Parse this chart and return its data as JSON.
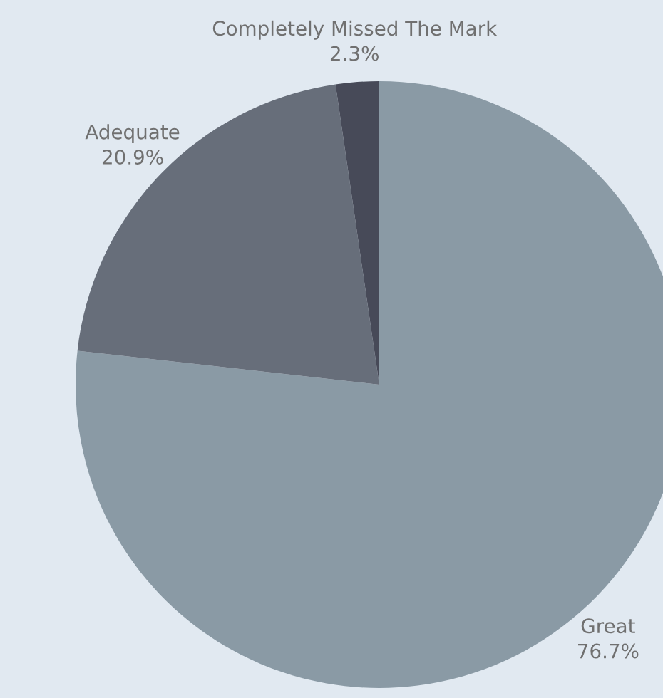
{
  "chart_data": {
    "type": "pie",
    "categories": [
      "Great",
      "Adequate",
      "Completely Missed The Mark"
    ],
    "values": [
      76.7,
      20.9,
      2.3
    ],
    "value_labels": [
      "76.7%",
      "20.9%",
      "2.3%"
    ],
    "colors": [
      "#8a9aa5",
      "#676e7a",
      "#474a58"
    ]
  }
}
